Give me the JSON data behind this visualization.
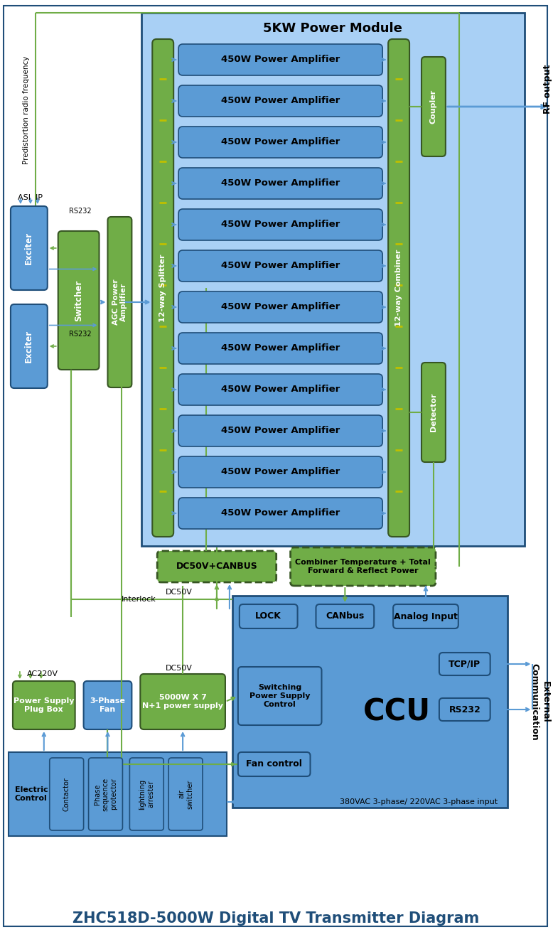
{
  "title": "ZHC518D-5000W Digital TV Transmitter Diagram",
  "bg_color": "#ffffff",
  "blue_dark": "#1F4E79",
  "blue_mid": "#2E75B6",
  "blue_light": "#5B9BD5",
  "blue_pale": "#9DC3E6",
  "green_dark": "#375623",
  "green_mid": "#548235",
  "green_light": "#70AD47",
  "module_title": "5KW Power Module",
  "amp_label": "450W Power Amplifier",
  "num_amps": 12
}
